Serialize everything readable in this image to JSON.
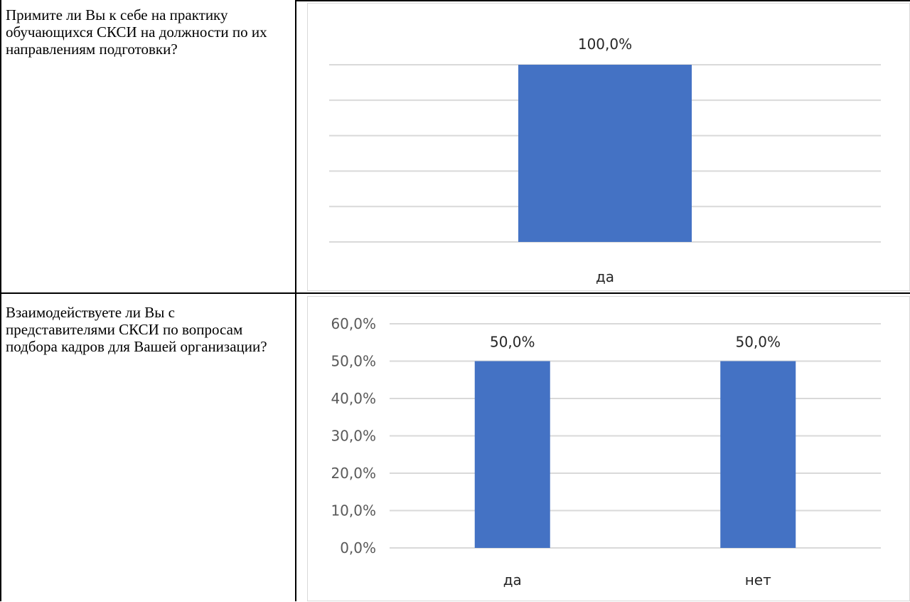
{
  "table": {
    "rows": [
      {
        "question": "Примите ли Вы к себе на практику обучающихся СКСИ на должности по их направлениям подготовки?"
      },
      {
        "question": "Взаимодействуете ли Вы с представителями СКСИ по вопросам подбора кадров для Вашей организации?"
      }
    ]
  },
  "colors": {
    "bar": "#4472c4",
    "gridline": "#d9d9d9",
    "table_border": "#000000"
  },
  "chart_data": [
    {
      "type": "bar",
      "categories": [
        "да"
      ],
      "values": [
        100.0
      ],
      "value_labels": [
        "100,0%"
      ],
      "ylim": [
        0,
        100
      ],
      "gridline_count": 6,
      "y_tick_labels_shown": false,
      "grid": true,
      "legend": "none"
    },
    {
      "type": "bar",
      "categories": [
        "да",
        "нет"
      ],
      "values": [
        50.0,
        50.0
      ],
      "value_labels": [
        "50,0%",
        "50,0%"
      ],
      "ylim": [
        0,
        60
      ],
      "y_ticks": [
        0,
        10,
        20,
        30,
        40,
        50,
        60
      ],
      "y_tick_labels": [
        "0,0%",
        "10,0%",
        "20,0%",
        "30,0%",
        "40,0%",
        "50,0%",
        "60,0%"
      ],
      "y_tick_labels_shown": true,
      "grid": true,
      "legend": "none"
    }
  ]
}
